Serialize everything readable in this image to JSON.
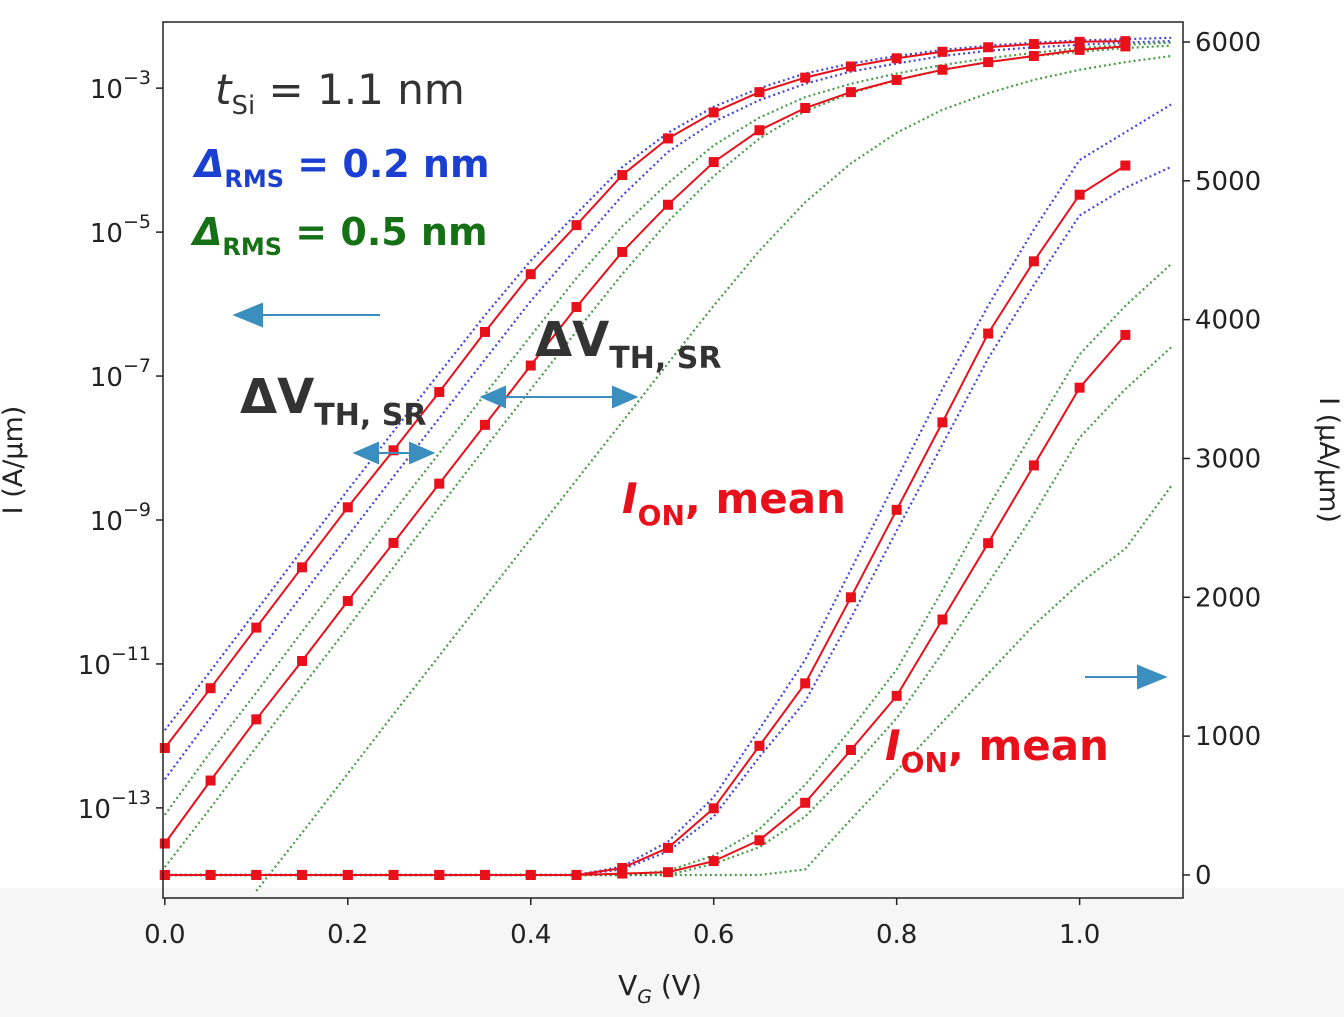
{
  "chart_data": {
    "type": "line",
    "xlabel": [
      "V",
      "G",
      " (V)"
    ],
    "ylabel": "I (A/μm)",
    "y2label": "I (μA/μm)",
    "yscale": "log",
    "grid": false,
    "xlim": [
      -0.002,
      1.113
    ],
    "ylim": [
      5.6e-15,
      0.0083
    ],
    "y2lim": [
      -166,
      6144
    ],
    "xticks": [
      {
        "value": 0,
        "label": "0.0"
      },
      0.2,
      0.4,
      0.6,
      0.8,
      {
        "value": 1,
        "label": "1.0"
      }
    ],
    "yticks": [
      {
        "value": 1e-13,
        "label": "10−13"
      },
      {
        "value": 1e-11,
        "label": "10−11"
      },
      {
        "value": 1e-09,
        "label": "10−9"
      },
      {
        "value": 1e-07,
        "label": "10−7"
      },
      {
        "value": 1e-05,
        "label": "10−5"
      },
      {
        "value": 0.001,
        "label": "10−3"
      }
    ],
    "y2ticks": [
      0,
      1000,
      2000,
      3000,
      4000,
      5000,
      6000
    ],
    "annotations": [
      {
        "parts": [
          "t",
          "Si",
          " = 1.1 nm"
        ],
        "color": "#333333"
      },
      {
        "parts": [
          "Δ",
          "RMS",
          " = 0.2  nm"
        ],
        "color": "#1b3fd0"
      },
      {
        "parts": [
          "Δ",
          "RMS",
          " = 0.5 nm"
        ],
        "color": "#167016"
      },
      {
        "parts": [
          "ΔV",
          "TH, SR"
        ],
        "color": "#333333"
      },
      {
        "parts": [
          "ΔV",
          "TH, SR"
        ],
        "color": "#333333"
      },
      {
        "parts": [
          "I",
          "ON",
          ", mean"
        ],
        "color": "#e8101a"
      },
      {
        "parts": [
          "I",
          "ON",
          ", mean"
        ],
        "color": "#e8101a"
      }
    ],
    "x": [
      0,
      0.05,
      0.1,
      0.15,
      0.2,
      0.25,
      0.3,
      0.35,
      0.4,
      0.45,
      0.5,
      0.55,
      0.6,
      0.65,
      0.7,
      0.75,
      0.8,
      0.85,
      0.9,
      0.95,
      1.0,
      1.05,
      1.1
    ],
    "series": [
      {
        "color": "#2424d8",
        "linestyle": "dotted",
        "values": [
          1.2e-12,
          8e-12,
          5.5e-11,
          3.8e-10,
          2.6e-09,
          1.7e-08,
          1.1e-07,
          7e-07,
          4e-06,
          1.8e-05,
          8e-05,
          0.00024,
          0.00055,
          0.001,
          0.0016,
          0.0022,
          0.0028,
          0.0034,
          0.0039,
          0.0043,
          0.0046,
          0.0048,
          0.005
        ]
      },
      {
        "color": "#2424d8",
        "linestyle": "dotted",
        "values": [
          2.5e-13,
          1.8e-12,
          1.3e-11,
          9e-11,
          6e-10,
          4e-09,
          2.6e-08,
          1.7e-07,
          1.1e-06,
          6e-06,
          3.2e-05,
          0.00013,
          0.00034,
          0.00068,
          0.00115,
          0.0017,
          0.0022,
          0.0028,
          0.0033,
          0.0037,
          0.004,
          0.0043,
          0.0045
        ]
      },
      {
        "color": "#2a8a2a",
        "linestyle": "dotted",
        "values": [
          8e-14,
          6e-13,
          4e-12,
          2.8e-11,
          1.9e-10,
          1.3e-09,
          8.5e-09,
          5.6e-08,
          3.6e-07,
          2.3e-06,
          1.2e-05,
          4.8e-05,
          0.00016,
          0.00039,
          0.00075,
          0.00115,
          0.0016,
          0.0021,
          0.0026,
          0.0031,
          0.0036,
          0.004,
          0.0043
        ]
      },
      {
        "color": "#2a8a2a",
        "linestyle": "dotted",
        "values": [
          1.5e-14,
          1e-13,
          7e-13,
          4.8e-12,
          3.2e-11,
          2.2e-10,
          1.5e-09,
          1e-08,
          6.5e-08,
          4.2e-07,
          2.6e-06,
          1.4e-05,
          6e-05,
          0.0002,
          0.00048,
          0.00085,
          0.0013,
          0.0018,
          0.0023,
          0.0028,
          0.0032,
          0.0036,
          0.0039
        ]
      },
      {
        "color": "#2a8a2a",
        "linestyle": "dotted",
        "values": [
          null,
          null,
          7e-15,
          4.5e-14,
          3e-13,
          2e-12,
          1.3e-11,
          8.5e-11,
          5.5e-10,
          3.6e-09,
          2.3e-08,
          1.5e-07,
          9.5e-07,
          5.5e-06,
          2.6e-05,
          9e-05,
          0.00024,
          0.0005,
          0.00085,
          0.0013,
          0.0018,
          0.0023,
          0.0028
        ]
      },
      {
        "color": "#2424d8",
        "linestyle": "dotted",
        "axis": "y2",
        "values": [
          0,
          0,
          0,
          0,
          0,
          0,
          0,
          0,
          0,
          0,
          60,
          240,
          560,
          1050,
          1550,
          2200,
          2850,
          3500,
          4100,
          4650,
          5150,
          5350,
          5550
        ]
      },
      {
        "color": "#2424d8",
        "linestyle": "dotted",
        "axis": "y2",
        "values": [
          0,
          0,
          0,
          0,
          0,
          0,
          0,
          0,
          0,
          0,
          40,
          170,
          420,
          850,
          1250,
          1850,
          2480,
          3100,
          3720,
          4250,
          4750,
          4950,
          5100
        ]
      },
      {
        "color": "#2a8a2a",
        "linestyle": "dotted",
        "axis": "y2",
        "values": [
          0,
          0,
          0,
          0,
          0,
          0,
          0,
          0,
          0,
          0,
          0,
          30,
          140,
          330,
          650,
          1050,
          1480,
          2050,
          2650,
          3200,
          3750,
          4100,
          4400
        ]
      },
      {
        "color": "#2a8a2a",
        "linestyle": "dotted",
        "axis": "y2",
        "values": [
          0,
          0,
          0,
          0,
          0,
          0,
          0,
          0,
          0,
          0,
          0,
          0,
          80,
          200,
          420,
          760,
          1130,
          1600,
          2100,
          2600,
          3150,
          3500,
          3800
        ]
      },
      {
        "color": "#2a8a2a",
        "linestyle": "dotted",
        "axis": "y2",
        "values": [
          0,
          0,
          0,
          0,
          0,
          0,
          0,
          0,
          0,
          0,
          0,
          0,
          0,
          0,
          40,
          400,
          750,
          1100,
          1450,
          1800,
          2100,
          2350,
          2800
        ]
      },
      {
        "color": "#e8101a",
        "linestyle": "solid",
        "marker": "s",
        "values": [
          6.8e-13,
          4.6e-12,
          3.2e-11,
          2.2e-10,
          1.5e-09,
          9.3e-09,
          6e-08,
          4.1e-07,
          2.6e-06,
          1.25e-05,
          6.2e-05,
          0.0002,
          0.00046,
          0.00088,
          0.0014,
          0.002,
          0.0026,
          0.0032,
          0.0037,
          0.0041,
          0.0044,
          0.0045,
          null
        ]
      },
      {
        "color": "#e8101a",
        "linestyle": "solid",
        "marker": "s",
        "values": [
          3.2e-14,
          2.4e-13,
          1.7e-12,
          1.1e-11,
          7.5e-11,
          4.8e-10,
          3.2e-09,
          2.1e-08,
          1.4e-07,
          9.1e-07,
          5.3e-06,
          2.4e-05,
          9.4e-05,
          0.00026,
          0.00053,
          0.00088,
          0.0013,
          0.0018,
          0.0023,
          0.0028,
          0.0034,
          0.0038,
          null
        ]
      },
      {
        "color": "#e8101a",
        "linestyle": "solid",
        "marker": "s",
        "axis": "y2",
        "values": [
          0,
          0,
          0,
          0,
          0,
          0,
          0,
          0,
          0,
          0,
          50,
          195,
          480,
          930,
          1380,
          2000,
          2630,
          3260,
          3900,
          4420,
          4900,
          5110,
          null
        ]
      },
      {
        "color": "#e8101a",
        "linestyle": "solid",
        "marker": "s",
        "axis": "y2",
        "values": [
          0,
          0,
          0,
          0,
          0,
          0,
          0,
          0,
          0,
          0,
          10,
          20,
          100,
          250,
          520,
          900,
          1290,
          1840,
          2390,
          2950,
          3510,
          3890,
          null
        ]
      }
    ]
  }
}
